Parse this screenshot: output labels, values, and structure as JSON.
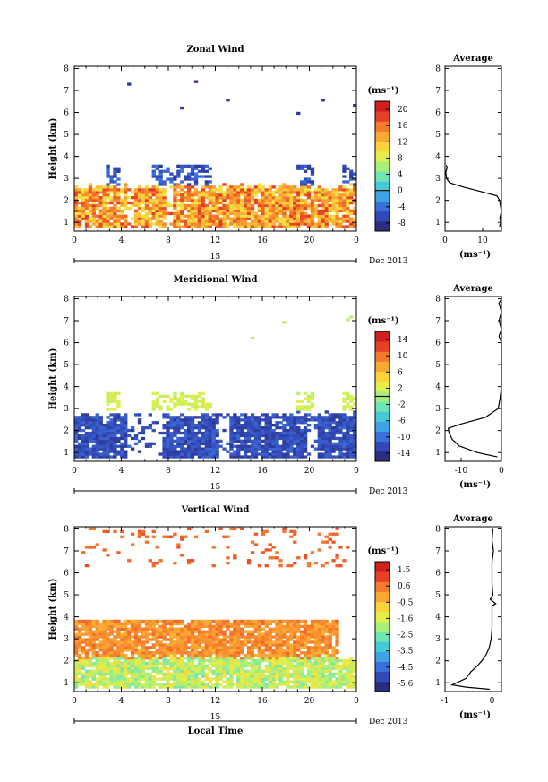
{
  "chart_data": [
    {
      "type": "heatmap",
      "title": "Zonal Wind",
      "ylabel": "Height (km)",
      "xlim": [
        0,
        24
      ],
      "ylim": [
        0.6,
        8.1
      ],
      "x_ticks": [
        "0",
        "4",
        "8",
        "12",
        "16",
        "20",
        "0"
      ],
      "y_ticks": [
        "1",
        "2",
        "3",
        "4",
        "5",
        "6",
        "7",
        "8"
      ],
      "day_label": "15",
      "date_label": "Dec 2013",
      "colorbar": {
        "unit": "(ms⁻¹)",
        "ticks": [
          "20",
          "16",
          "12",
          "8",
          "4",
          "0",
          "-4",
          "-8"
        ],
        "range": [
          -10,
          22
        ],
        "zero_line": 0
      },
      "field": {
        "surface_layer_top_km": 2.5,
        "surface_range": [
          9,
          20
        ],
        "upper_layer_km": [
          2.6,
          3.6
        ],
        "upper_range": [
          -9,
          -4
        ]
      },
      "average_profile": {
        "title": "Average",
        "xlabel": "(ms⁻¹)",
        "x_ticks": [
          "0",
          "10"
        ],
        "xlim": [
          0,
          15
        ],
        "height_km": [
          0.8,
          1.0,
          1.2,
          1.5,
          1.8,
          2.0,
          2.2,
          2.4,
          2.6,
          2.8,
          3.0,
          3.3,
          3.5,
          3.6
        ],
        "value": [
          14.5,
          14.8,
          14.6,
          15.0,
          14.7,
          14.5,
          13.8,
          9.5,
          5.0,
          1.2,
          0.4,
          0.2,
          0.6,
          0.3
        ]
      }
    },
    {
      "type": "heatmap",
      "title": "Meridional Wind",
      "ylabel": "Height (km)",
      "xlim": [
        0,
        24
      ],
      "ylim": [
        0.6,
        8.1
      ],
      "x_ticks": [
        "0",
        "4",
        "8",
        "12",
        "16",
        "20",
        "0"
      ],
      "y_ticks": [
        "1",
        "2",
        "3",
        "4",
        "5",
        "6",
        "7",
        "8"
      ],
      "day_label": "15",
      "date_label": "Dec 2013",
      "colorbar": {
        "unit": "(ms⁻¹)",
        "ticks": [
          "14",
          "10",
          "6",
          "2",
          "-2",
          "-6",
          "-10",
          "-14"
        ],
        "range": [
          -16,
          16
        ],
        "zero_line": 0
      },
      "field": {
        "surface_layer_top_km": 2.6,
        "surface_range": [
          -15,
          -11
        ],
        "upper_layer_km": [
          2.8,
          3.7
        ],
        "upper_range": [
          1,
          3
        ]
      },
      "average_profile": {
        "title": "Average",
        "xlabel": "(ms⁻¹)",
        "x_ticks": [
          "-10",
          "0"
        ],
        "xlim": [
          -14,
          0
        ],
        "height_km": [
          0.8,
          1.0,
          1.3,
          1.6,
          1.9,
          2.1,
          2.3,
          2.6,
          3.0,
          3.5,
          4.0,
          5.0,
          6.0,
          6.3,
          6.6,
          7.0,
          7.4,
          7.8,
          8.0
        ],
        "value": [
          -1.0,
          -6.0,
          -10.5,
          -12.2,
          -13.0,
          -13.2,
          -10.0,
          -4.0,
          -0.8,
          -0.3,
          0.0,
          0.0,
          0.0,
          -0.6,
          0.0,
          -0.6,
          0.0,
          -0.6,
          0.0
        ]
      }
    },
    {
      "type": "heatmap",
      "title": "Vertical Wind",
      "xlabel": "Local Time",
      "ylabel": "Height (km)",
      "xlim": [
        0,
        24
      ],
      "ylim": [
        0.6,
        8.1
      ],
      "x_ticks": [
        "0",
        "4",
        "8",
        "12",
        "16",
        "20",
        "0"
      ],
      "y_ticks": [
        "1",
        "2",
        "3",
        "4",
        "5",
        "6",
        "7",
        "8"
      ],
      "day_label": "15",
      "date_label": "Dec 2013",
      "colorbar": {
        "unit": "(ms⁻¹)",
        "ticks": [
          "1.5",
          "0.6",
          "-0.5",
          "-1.6",
          "-2.5",
          "-3.5",
          "-4.5",
          "-5.6"
        ],
        "range": [
          -6,
          2
        ]
      },
      "field": {
        "surface_layer_top_km": 2.0,
        "surface_range": [
          -2.6,
          -0.8
        ],
        "upper_layer_km": [
          2.0,
          3.8
        ],
        "upper_range": [
          -0.2,
          0.9
        ]
      },
      "average_profile": {
        "title": "Average",
        "xlabel": "(ms⁻¹)",
        "x_ticks": [
          "-1",
          "0"
        ],
        "xlim": [
          -1,
          0.2
        ],
        "height_km": [
          0.7,
          0.8,
          0.9,
          1.0,
          1.2,
          1.5,
          1.8,
          2.0,
          2.3,
          2.6,
          3.0,
          3.5,
          4.0,
          4.5,
          4.6,
          4.8,
          5.0,
          5.5,
          6.0,
          6.5,
          7.0,
          7.5,
          8.0
        ],
        "value": [
          -0.05,
          -0.55,
          -0.85,
          -0.75,
          -0.55,
          -0.45,
          -0.3,
          -0.22,
          -0.12,
          -0.06,
          -0.02,
          0.0,
          0.0,
          0.0,
          0.08,
          -0.04,
          0.02,
          0.0,
          0.0,
          0.0,
          0.03,
          0.0,
          0.02
        ]
      }
    }
  ]
}
